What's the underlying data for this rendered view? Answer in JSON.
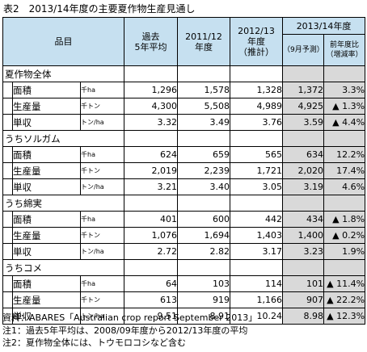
{
  "title": "表2　2013/14年度の主要夏作物生産見通し",
  "header": {
    "item": "品目",
    "past5_line1": "過去",
    "past5_line2": "5年平均",
    "fy2011_line1": "2011/12",
    "fy2011_line2": "年度",
    "fy2012_line1": "2012/13",
    "fy2012_line2": "年度",
    "fy2012_line3": "（推計）",
    "fy2013": "2013/14年度",
    "forecast": "（9月予測）",
    "yoy_line1": "前年度比",
    "yoy_line2": "（増減率）"
  },
  "groups": [
    {
      "name": "夏作物全体",
      "rows": [
        {
          "label": "面積",
          "unit": "千ha",
          "past5": "1,296",
          "fy2011": "1,578",
          "fy2012": "1,328",
          "fy2013": "1,372",
          "yoy": "3.3%"
        },
        {
          "label": "生産量",
          "unit": "千トン",
          "past5": "4,300",
          "fy2011": "5,508",
          "fy2012": "4,989",
          "fy2013": "4,925",
          "yoy": "▲ 1.3%"
        },
        {
          "label": "単収",
          "unit": "トン/ha",
          "past5": "3.32",
          "fy2011": "3.49",
          "fy2012": "3.76",
          "fy2013": "3.59",
          "yoy": "▲ 4.4%"
        }
      ]
    },
    {
      "name": "うちソルガム",
      "rows": [
        {
          "label": "面積",
          "unit": "千ha",
          "past5": "624",
          "fy2011": "659",
          "fy2012": "565",
          "fy2013": "634",
          "yoy": "12.2%"
        },
        {
          "label": "生産量",
          "unit": "千トン",
          "past5": "2,019",
          "fy2011": "2,239",
          "fy2012": "1,721",
          "fy2013": "2,020",
          "yoy": "17.4%"
        },
        {
          "label": "単収",
          "unit": "トン/ha",
          "past5": "3.21",
          "fy2011": "3.40",
          "fy2012": "3.05",
          "fy2013": "3.19",
          "yoy": "4.6%"
        }
      ]
    },
    {
      "name": "うち綿実",
      "rows": [
        {
          "label": "面積",
          "unit": "千ha",
          "past5": "401",
          "fy2011": "600",
          "fy2012": "442",
          "fy2013": "434",
          "yoy": "▲ 1.8%"
        },
        {
          "label": "生産量",
          "unit": "千トン",
          "past5": "1,076",
          "fy2011": "1,694",
          "fy2012": "1,403",
          "fy2013": "1,400",
          "yoy": "▲ 0.2%"
        },
        {
          "label": "単収",
          "unit": "トン/ha",
          "past5": "2.72",
          "fy2011": "2.82",
          "fy2012": "3.17",
          "fy2013": "3.23",
          "yoy": "1.9%"
        }
      ]
    },
    {
      "name": "うちコメ",
      "rows": [
        {
          "label": "面積",
          "unit": "千ha",
          "past5": "64",
          "fy2011": "103",
          "fy2012": "114",
          "fy2013": "101",
          "yoy": "▲ 11.4%"
        },
        {
          "label": "生産量",
          "unit": "千トン",
          "past5": "613",
          "fy2011": "919",
          "fy2012": "1,166",
          "fy2013": "907",
          "yoy": "▲ 22.2%"
        },
        {
          "label": "単収",
          "unit": "トン/ha",
          "past5": "9.51",
          "fy2011": "8.91",
          "fy2012": "10.24",
          "fy2013": "8.98",
          "yoy": "▲ 12.3%"
        }
      ]
    }
  ],
  "notes": [
    "資料：ABARES「Australian crop report September 2013」",
    "注1：過去5年平均は、2008/09年度から2012/13年度の平均",
    "注2：夏作物全体には、トウモロコシなど含む"
  ]
}
